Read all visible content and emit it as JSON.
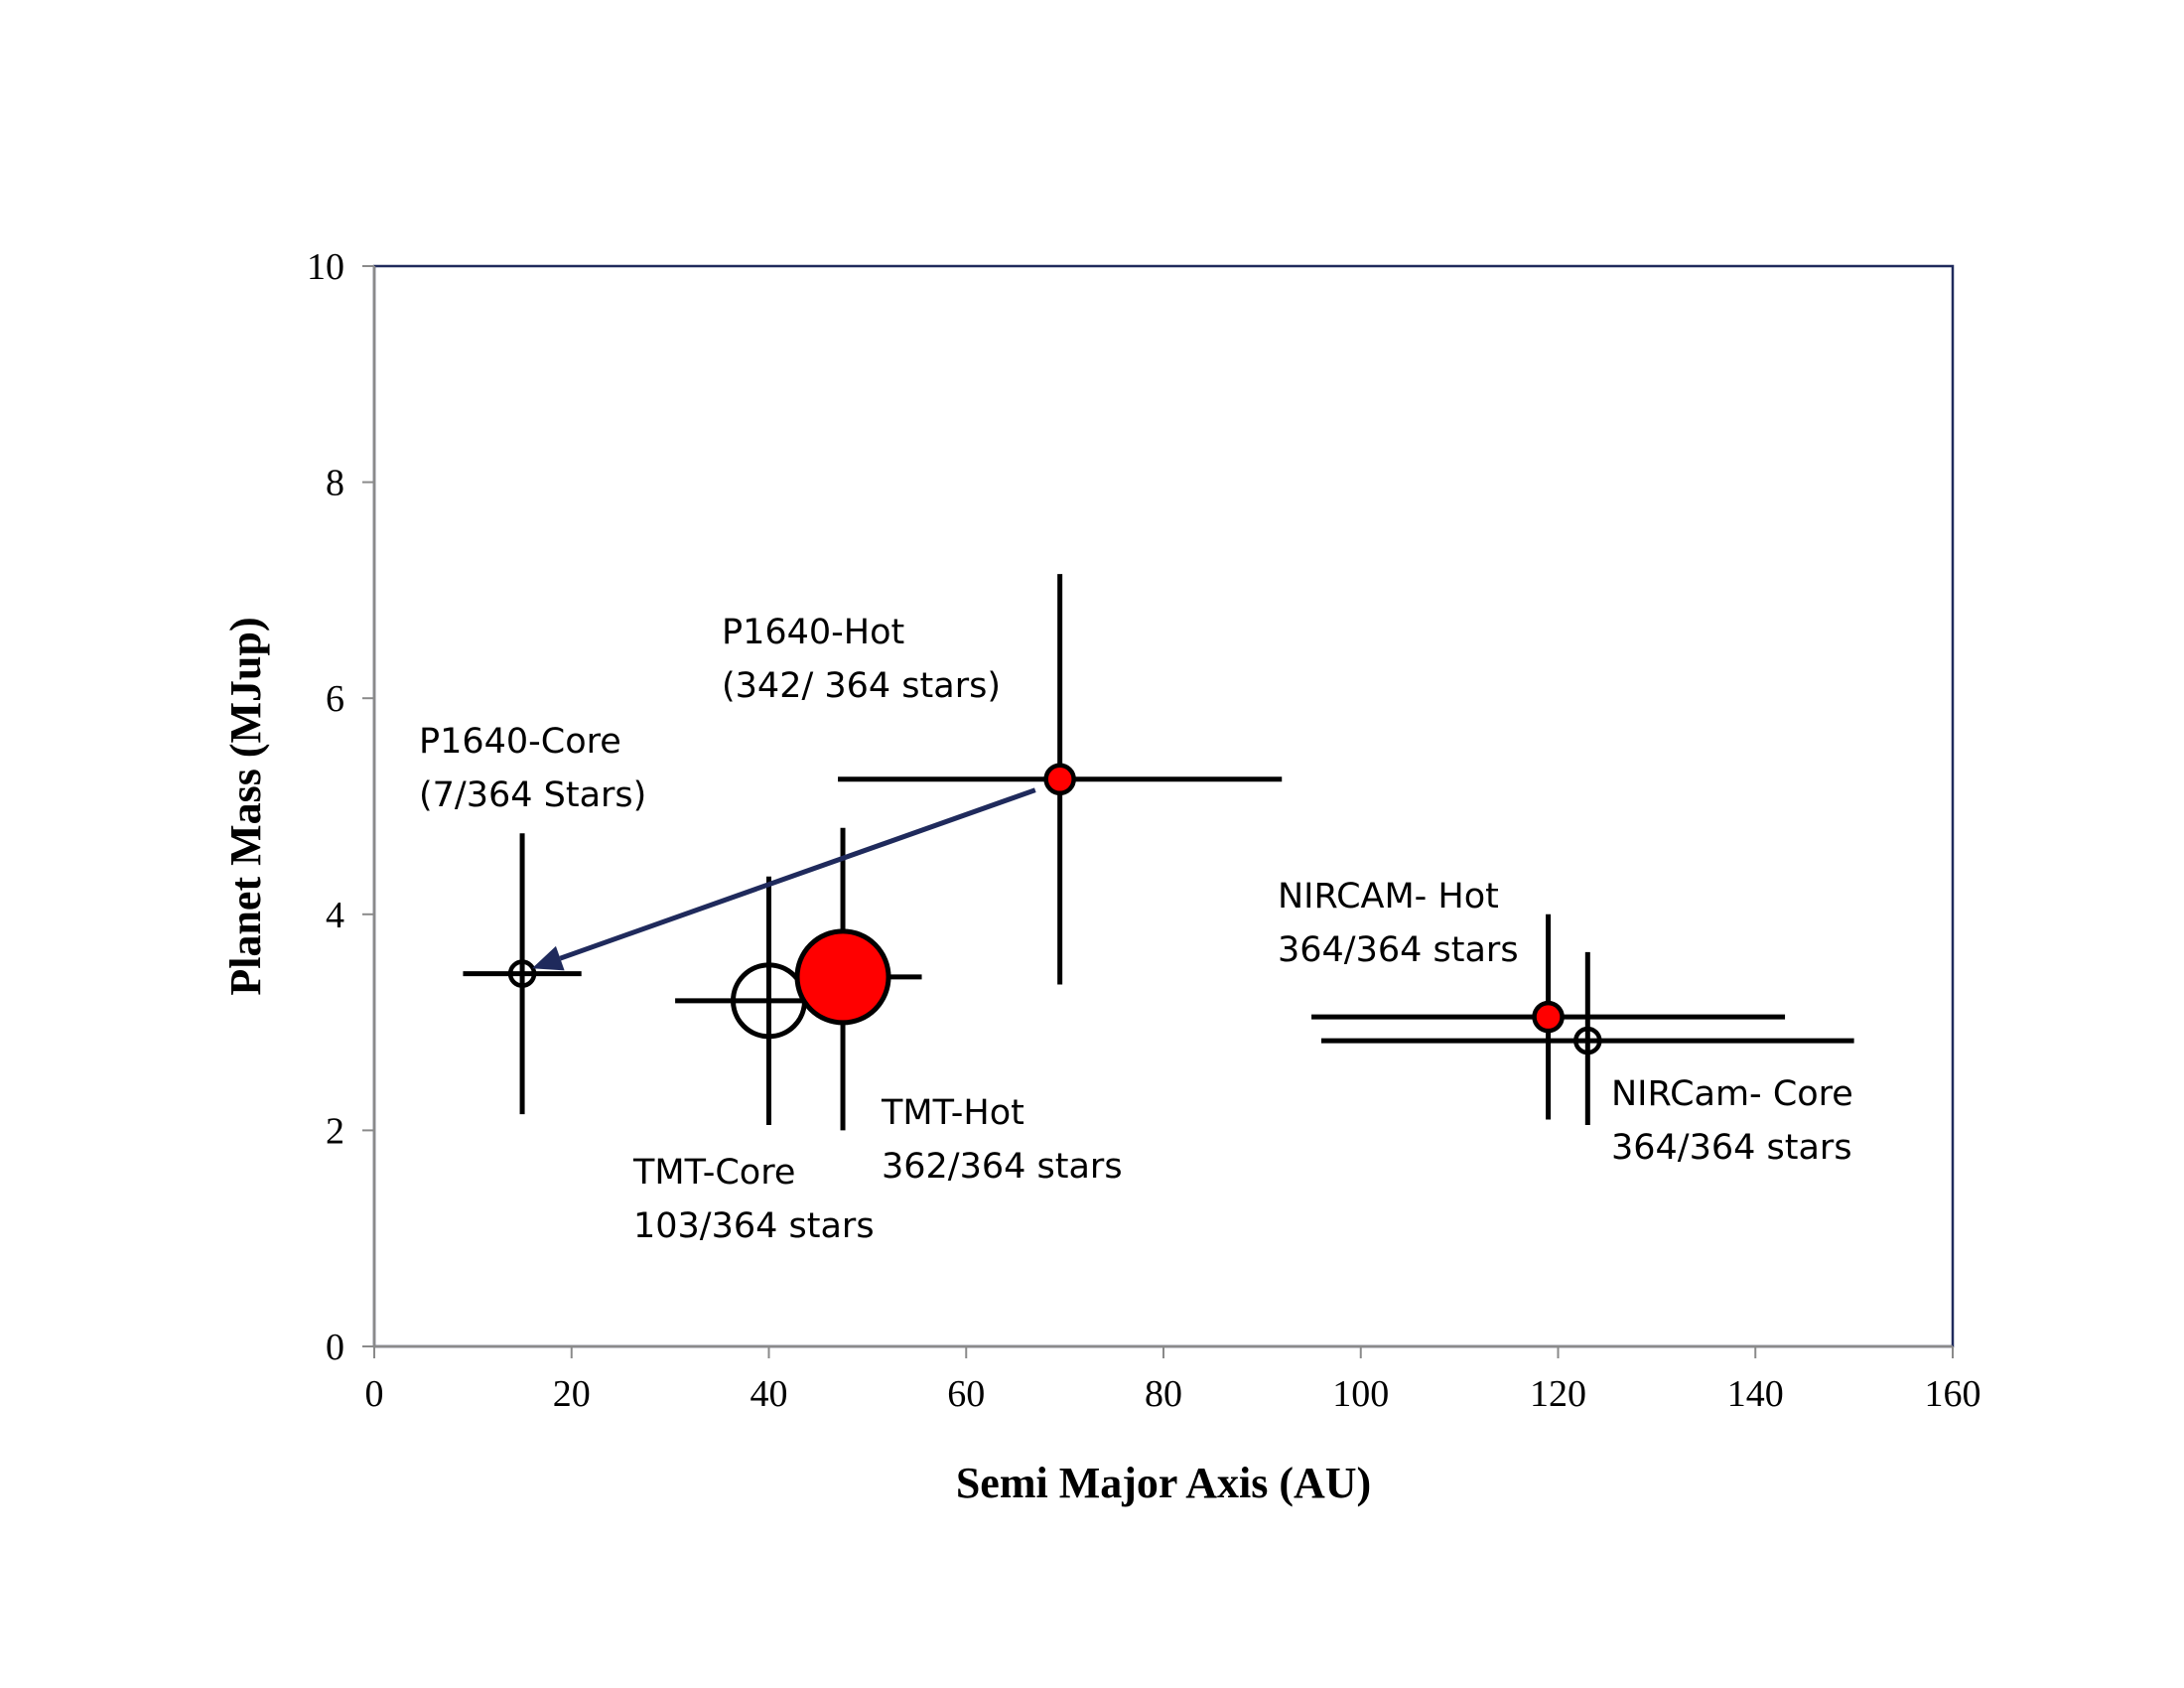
{
  "chart_data": {
    "type": "scatter",
    "title": "",
    "xlabel": "Semi Major Axis (AU)",
    "ylabel": "Planet Mass (MJup)",
    "xlim": [
      0,
      160
    ],
    "ylim": [
      0,
      10
    ],
    "xticks": [
      "0",
      "20",
      "40",
      "60",
      "80",
      "100",
      "120",
      "140",
      "160"
    ],
    "yticks": [
      "0",
      "2",
      "4",
      "6",
      "8",
      "10"
    ],
    "grid": false,
    "colors": {
      "hot": "#ff0000",
      "core": "#ffffff",
      "arrow": "#1f2a5c",
      "axis": "#1f2a5c"
    },
    "points": [
      {
        "id": "p1640-core",
        "x": 15,
        "y": 3.45,
        "xerr": [
          9,
          21
        ],
        "yerr": [
          2.15,
          4.75
        ],
        "style": "core",
        "size": "small"
      },
      {
        "id": "p1640-hot",
        "x": 69.5,
        "y": 5.25,
        "xerr": [
          47,
          92
        ],
        "yerr": [
          3.35,
          7.15
        ],
        "style": "hot",
        "size": "small"
      },
      {
        "id": "tmt-core",
        "x": 40,
        "y": 3.2,
        "xerr": [
          30.5,
          49
        ],
        "yerr": [
          2.05,
          4.35
        ],
        "style": "core",
        "size": "large"
      },
      {
        "id": "tmt-hot",
        "x": 47.5,
        "y": 3.42,
        "xerr": [
          43,
          55.5
        ],
        "yerr": [
          2.0,
          4.8
        ],
        "style": "hot",
        "size": "large"
      },
      {
        "id": "nircam-hot",
        "x": 119,
        "y": 3.05,
        "xerr": [
          95,
          143
        ],
        "yerr": [
          2.1,
          4.0
        ],
        "style": "hot",
        "size": "small"
      },
      {
        "id": "nircam-core",
        "x": 123,
        "y": 2.83,
        "xerr": [
          96,
          150
        ],
        "yerr": [
          2.05,
          3.65
        ],
        "style": "core",
        "size": "small"
      }
    ],
    "annotations": [
      {
        "id": "p1640-core",
        "lines": [
          "P1640-Core",
          "(7/364 Stars)"
        ]
      },
      {
        "id": "p1640-hot",
        "lines": [
          "P1640-Hot",
          "(342/ 364 stars)"
        ]
      },
      {
        "id": "tmt-core",
        "lines": [
          "TMT-Core",
          "103/364 stars"
        ]
      },
      {
        "id": "tmt-hot",
        "lines": [
          "TMT-Hot",
          "362/364 stars"
        ]
      },
      {
        "id": "nircam-hot",
        "lines": [
          "NIRCAM- Hot",
          "364/364 stars"
        ]
      },
      {
        "id": "nircam-core",
        "lines": [
          "NIRCam- Core",
          "364/364 stars"
        ]
      }
    ],
    "arrow": {
      "from": [
        67,
        5.15
      ],
      "to": [
        16,
        3.5
      ]
    }
  }
}
